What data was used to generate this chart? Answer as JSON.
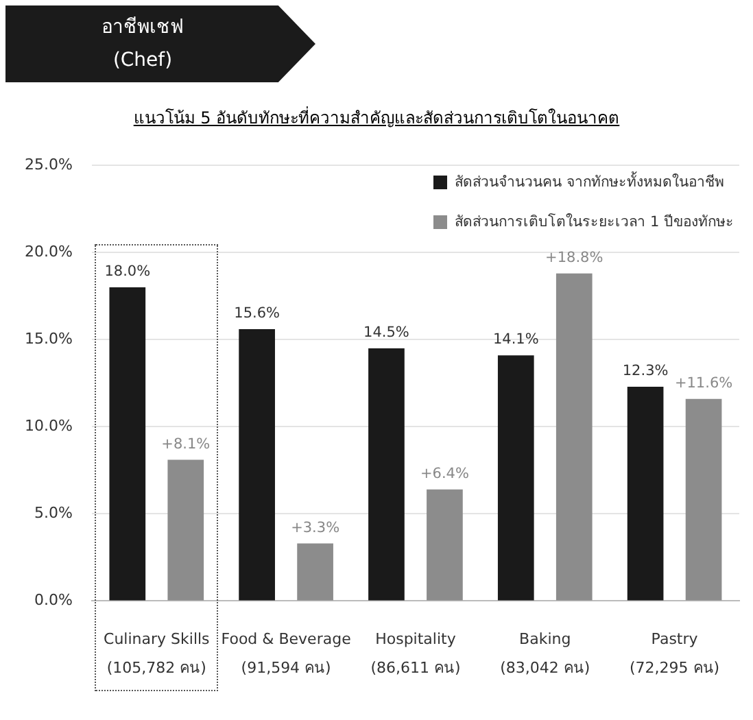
{
  "chart_data": {
    "type": "bar",
    "title": "อาชีพเชฟ\n(Chef)",
    "subtitle": "แนวโน้ม 5 อันดับทักษะที่ความสำคัญและสัดส่วนการเติบโตในอนาคต",
    "categories": [
      "Culinary Skills\n(105,782 คน)",
      "Food & Beverage\n(91,594 คน)",
      "Hospitality\n(86,611 คน)",
      "Baking\n(83,042 คน)",
      "Pastry\n(72,295 คน)"
    ],
    "series": [
      {
        "name": "สัดส่วนจำนวนคน จากทักษะทั้งหมดในอาชีพ",
        "color": "#1a1a1a",
        "values": [
          18.0,
          15.6,
          14.5,
          14.1,
          12.3
        ],
        "value_labels": [
          "18.0%",
          "15.6%",
          "14.5%",
          "14.1%",
          "12.3%"
        ]
      },
      {
        "name": "สัดส่วนการเติบโตในระยะเวลา 1 ปีของทักษะ",
        "color": "#8c8c8c",
        "values": [
          8.1,
          3.3,
          6.4,
          18.8,
          11.6
        ],
        "value_labels": [
          "+8.1%",
          "+3.3%",
          "+6.4%",
          "+18.8%",
          "+11.6%"
        ]
      }
    ],
    "ylim": [
      0,
      25
    ],
    "yticks": [
      {
        "value": 0,
        "label": "0.0%"
      },
      {
        "value": 5,
        "label": "5.0%"
      },
      {
        "value": 10,
        "label": "10.0%"
      },
      {
        "value": 15,
        "label": "15.0%"
      },
      {
        "value": 20,
        "label": "20.0%"
      },
      {
        "value": 25,
        "label": "25.0%"
      }
    ],
    "grid": "y",
    "legend": "top right"
  }
}
